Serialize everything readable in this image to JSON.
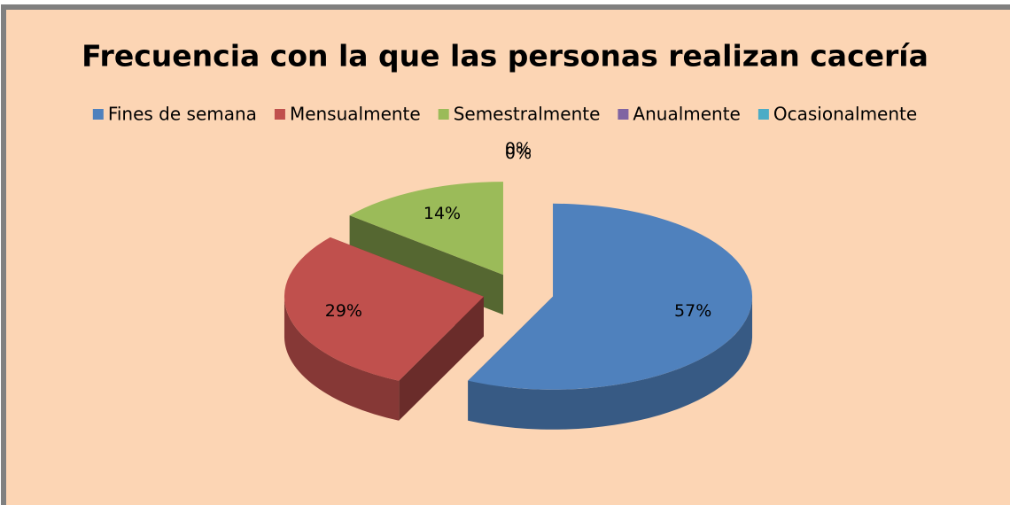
{
  "chart_data": {
    "type": "pie",
    "title": "Frecuencia con la que las personas realizan cacería",
    "categories": [
      "Fines de semana",
      "Mensualmente",
      "Semestralmente",
      "Anualmente",
      "Ocasionalmente"
    ],
    "values": [
      57,
      29,
      14,
      0,
      0
    ],
    "value_labels": [
      "57%",
      "29%",
      "14%",
      "0%",
      "0%"
    ],
    "colors": [
      "#4f81bd",
      "#c0504d",
      "#9bbb59",
      "#8064a2",
      "#4bacc6"
    ],
    "legend": "top"
  }
}
